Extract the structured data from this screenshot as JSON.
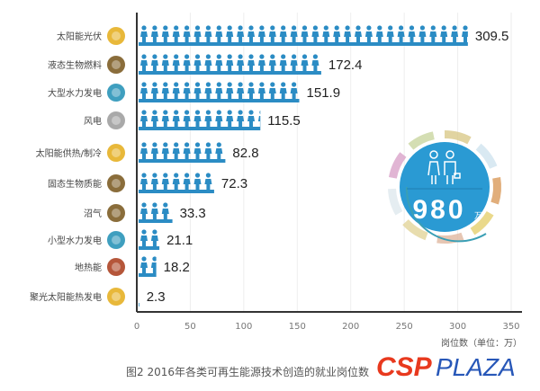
{
  "chart_data": {
    "type": "bar",
    "orientation": "horizontal",
    "style": "pictogram",
    "categories": [
      "太阳能光伏",
      "液态生物燃料",
      "大型水力发电",
      "风电",
      "太阳能供热/制冷",
      "固态生物质能",
      "沼气",
      "小型水力发电",
      "地热能",
      "聚光太阳能热发电"
    ],
    "values": [
      309.5,
      172.4,
      151.9,
      115.5,
      82.8,
      72.3,
      33.3,
      21.1,
      18.2,
      2.3
    ],
    "value_labels": [
      "309.5",
      "172.4",
      "151.9",
      "115.5",
      "82.8",
      "72.3",
      "33.3",
      "21.1",
      "18.2",
      "2.3"
    ],
    "category_icons": [
      "sun-icon",
      "biofuel-icon",
      "water-drop-icon",
      "wind-icon",
      "sun-icon",
      "biomass-icon",
      "biogas-icon",
      "water-drop-icon",
      "geothermal-icon",
      "sun-icon"
    ],
    "icon_colors": [
      "#e8b83a",
      "#8a6d3b",
      "#3f9fbf",
      "#a9a9a9",
      "#e8b83a",
      "#8a6d3b",
      "#8a6d3b",
      "#3f9fbf",
      "#b5563a",
      "#e8b83a"
    ],
    "xlim": [
      0,
      350
    ],
    "xticks": [
      "0",
      "50",
      "100",
      "150",
      "200",
      "250",
      "300",
      "350"
    ],
    "xlabel": "岗位数（单位：万）",
    "caption": "图2 2016年各类可再生能源技术创造的就业岗位数",
    "bar_color": "#2b8cc4",
    "grid": true,
    "total": {
      "value": "980",
      "unit": "万"
    }
  },
  "watermark": "CSPPLAZA"
}
